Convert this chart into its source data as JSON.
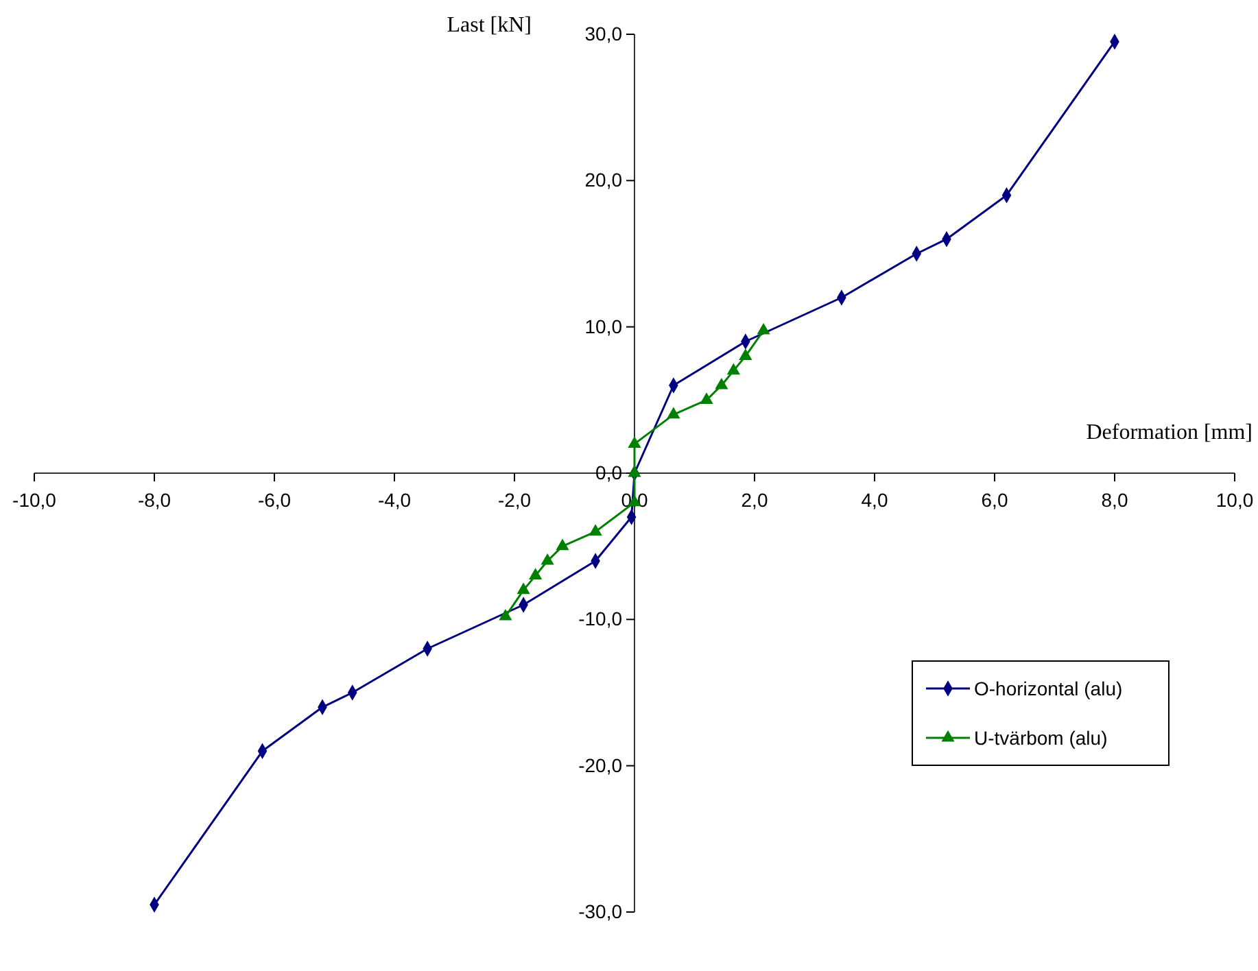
{
  "chart_data": {
    "type": "line",
    "xlabel": "Deformation [mm]",
    "ylabel": "Last [kN]",
    "xlim": [
      -10,
      10
    ],
    "ylim": [
      -30,
      30
    ],
    "xticks": [
      {
        "value": -10,
        "label": "-10,0"
      },
      {
        "value": -8,
        "label": "-8,0"
      },
      {
        "value": -6,
        "label": "-6,0"
      },
      {
        "value": -4,
        "label": "-4,0"
      },
      {
        "value": -2,
        "label": "-2,0"
      },
      {
        "value": 0,
        "label": "0,0"
      },
      {
        "value": 2,
        "label": "2,0"
      },
      {
        "value": 4,
        "label": "4,0"
      },
      {
        "value": 6,
        "label": "6,0"
      },
      {
        "value": 8,
        "label": "8,0"
      },
      {
        "value": 10,
        "label": "10,0"
      }
    ],
    "yticks": [
      {
        "value": -30,
        "label": "-30,0"
      },
      {
        "value": -20,
        "label": "-20,0"
      },
      {
        "value": -10,
        "label": "-10,0"
      },
      {
        "value": 0,
        "label": "0,0"
      },
      {
        "value": 10,
        "label": "10,0"
      },
      {
        "value": 20,
        "label": "20,0"
      },
      {
        "value": 30,
        "label": "30,0"
      }
    ],
    "grid": false,
    "legend": "bottom right",
    "line_style": "solid",
    "series": [
      {
        "name": "O-horizontal (alu)",
        "color": "#000080",
        "marker": "diamond",
        "x": [
          -8.0,
          -6.2,
          -5.2,
          -4.7,
          -3.45,
          -1.85,
          -0.65,
          -0.05,
          0,
          0.65,
          1.85,
          3.45,
          4.7,
          5.2,
          6.2,
          8.0
        ],
        "values": [
          -29.5,
          -19,
          -16,
          -15,
          -12,
          -9,
          -6,
          -3,
          0,
          6,
          9,
          12,
          15,
          16,
          19,
          29.5
        ]
      },
      {
        "name": "U-tvärbom (alu)",
        "color": "#008000",
        "marker": "triangle",
        "x": [
          -2.15,
          -1.85,
          -1.65,
          -1.45,
          -1.2,
          -0.65,
          0,
          0,
          0,
          0.65,
          1.2,
          1.45,
          1.65,
          1.85,
          2.15
        ],
        "values": [
          -9.8,
          -8,
          -7,
          -6,
          -5,
          -4,
          -2,
          0,
          2,
          4,
          5,
          6,
          7,
          8,
          9.75
        ]
      }
    ]
  }
}
